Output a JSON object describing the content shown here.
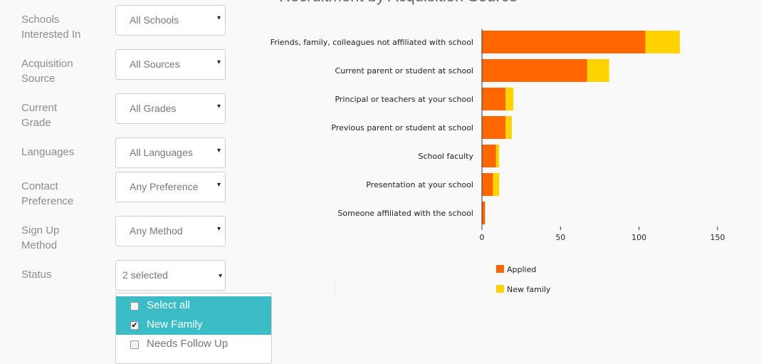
{
  "filters": [
    {
      "label": "Schools\nInterested In",
      "value": "All Schools"
    },
    {
      "label": "Acquisition\nSource",
      "value": "All Sources"
    },
    {
      "label": "Current\nGrade",
      "value": "All Grades"
    },
    {
      "label": "Languages",
      "value": "All Languages"
    },
    {
      "label": "Contact\nPreference",
      "value": "Any Preference"
    },
    {
      "label": "Sign Up\nMethod",
      "value": "Any Method"
    },
    {
      "label": "Status",
      "value": "2 selected"
    }
  ],
  "caret_glyph": "▾",
  "status_menu": {
    "items": [
      {
        "label": "Select all",
        "checked": false
      },
      {
        "label": "New Family",
        "checked": true
      },
      {
        "label": "Needs Follow Up",
        "checked": false
      }
    ]
  },
  "colors": {
    "applied": "#ff6600",
    "new_family": "#ffd200",
    "highlight": "#3bbcc6"
  },
  "chart_data": {
    "type": "bar",
    "orientation": "horizontal",
    "stacked": true,
    "title": "Recruitment by Acquisition Source",
    "categories": [
      "Friends, family, colleagues not affiliated with school",
      "Current parent or student at school",
      "Principal or teachers at your school",
      "Previous parent or student at school",
      "School faculty",
      "Presentation at your school",
      "Someone affiliated with the school"
    ],
    "series": [
      {
        "name": "Applied",
        "values": [
          104,
          67,
          15,
          15,
          9,
          7,
          2
        ]
      },
      {
        "name": "New family",
        "values": [
          22,
          14,
          5,
          4,
          2,
          4,
          0
        ]
      }
    ],
    "xlim": [
      0,
      150
    ],
    "xticks": [
      0,
      50,
      100,
      150
    ],
    "legend": "bottom-left"
  }
}
